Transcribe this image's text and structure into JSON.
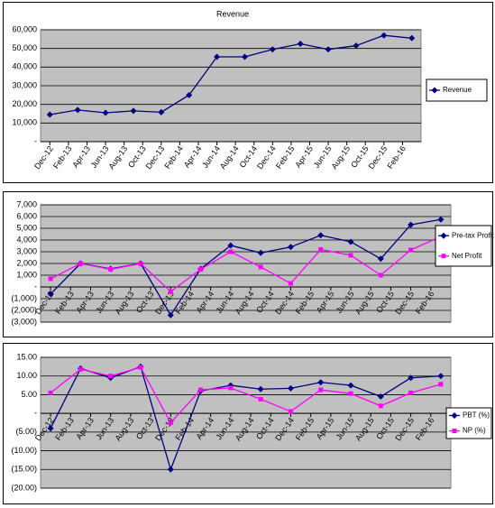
{
  "chart_data": [
    {
      "type": "line",
      "title": "Revenue",
      "x": [
        "2012-12",
        "2013-03",
        "2013-06",
        "2013-09",
        "2013-12",
        "2014-03",
        "2014-06",
        "2014-09",
        "2014-12",
        "2015-03",
        "2015-06",
        "2015-09",
        "2015-12",
        "2016-03"
      ],
      "xlim": [
        "2012-11",
        "2016-04"
      ],
      "xticks": [
        {
          "value": "2012-12",
          "label": "Dec-12"
        },
        {
          "value": "2013-02",
          "label": "Feb-13"
        },
        {
          "value": "2013-04",
          "label": "Apr-13"
        },
        {
          "value": "2013-06",
          "label": "Jun-13"
        },
        {
          "value": "2013-08",
          "label": "Aug-13"
        },
        {
          "value": "2013-10",
          "label": "Oct-13"
        },
        {
          "value": "2013-12",
          "label": "Dec-13"
        },
        {
          "value": "2014-02",
          "label": "Feb-14"
        },
        {
          "value": "2014-04",
          "label": "Apr-14"
        },
        {
          "value": "2014-06",
          "label": "Jun-14"
        },
        {
          "value": "2014-08",
          "label": "Aug-14"
        },
        {
          "value": "2014-10",
          "label": "Oct-14"
        },
        {
          "value": "2014-12",
          "label": "Dec-14"
        },
        {
          "value": "2015-02",
          "label": "Feb-15"
        },
        {
          "value": "2015-04",
          "label": "Apr-15"
        },
        {
          "value": "2015-06",
          "label": "Jun-15"
        },
        {
          "value": "2015-08",
          "label": "Aug-15"
        },
        {
          "value": "2015-10",
          "label": "Oct-15"
        },
        {
          "value": "2015-12",
          "label": "Dec-15"
        },
        {
          "value": "2016-02",
          "label": "Feb-16"
        }
      ],
      "ylim": [
        0,
        60000
      ],
      "yticks": [
        {
          "value": 0,
          "label": "-"
        },
        {
          "value": 10000,
          "label": "10,000"
        },
        {
          "value": 20000,
          "label": "20,000"
        },
        {
          "value": 30000,
          "label": "30,000"
        },
        {
          "value": 40000,
          "label": "40,000"
        },
        {
          "value": 50000,
          "label": "50,000"
        },
        {
          "value": 60000,
          "label": "60,000"
        }
      ],
      "grid": true,
      "legend": "right",
      "series": [
        {
          "name": "Revenue",
          "color": "#000080",
          "marker": "diamond",
          "values": [
            14500,
            17000,
            15500,
            16500,
            15800,
            25000,
            45500,
            45500,
            49500,
            52500,
            49500,
            51500,
            57000,
            55500
          ]
        }
      ]
    },
    {
      "type": "line",
      "x": [
        "2012-12",
        "2013-03",
        "2013-06",
        "2013-09",
        "2013-12",
        "2014-03",
        "2014-06",
        "2014-09",
        "2014-12",
        "2015-03",
        "2015-06",
        "2015-09",
        "2015-12",
        "2016-03"
      ],
      "xlim": [
        "2012-11",
        "2016-04"
      ],
      "xticks": [
        {
          "value": "2012-12",
          "label": "Dec-12"
        },
        {
          "value": "2013-02",
          "label": "Feb-13"
        },
        {
          "value": "2013-04",
          "label": "Apr-13"
        },
        {
          "value": "2013-06",
          "label": "Jun-13"
        },
        {
          "value": "2013-08",
          "label": "Aug-13"
        },
        {
          "value": "2013-10",
          "label": "Oct-13"
        },
        {
          "value": "2013-12",
          "label": "Dec-13"
        },
        {
          "value": "2014-02",
          "label": "Feb-14"
        },
        {
          "value": "2014-04",
          "label": "Apr-14"
        },
        {
          "value": "2014-06",
          "label": "Jun-14"
        },
        {
          "value": "2014-08",
          "label": "Aug-14"
        },
        {
          "value": "2014-10",
          "label": "Oct-14"
        },
        {
          "value": "2014-12",
          "label": "Dec-14"
        },
        {
          "value": "2015-02",
          "label": "Feb-15"
        },
        {
          "value": "2015-04",
          "label": "Apr-15"
        },
        {
          "value": "2015-06",
          "label": "Jun-15"
        },
        {
          "value": "2015-08",
          "label": "Aug-15"
        },
        {
          "value": "2015-10",
          "label": "Oct-15"
        },
        {
          "value": "2015-12",
          "label": "Dec-15"
        },
        {
          "value": "2016-02",
          "label": "Feb-16"
        }
      ],
      "ylim": [
        -3000,
        7000
      ],
      "yticks": [
        {
          "value": -3000,
          "label": "(3,000)"
        },
        {
          "value": -2000,
          "label": "(2,000)"
        },
        {
          "value": -1000,
          "label": "(1,000)"
        },
        {
          "value": 0,
          "label": "-"
        },
        {
          "value": 1000,
          "label": "1,000"
        },
        {
          "value": 2000,
          "label": "2,000"
        },
        {
          "value": 3000,
          "label": "3,000"
        },
        {
          "value": 4000,
          "label": "4,000"
        },
        {
          "value": 5000,
          "label": "5,000"
        },
        {
          "value": 6000,
          "label": "6,000"
        },
        {
          "value": 7000,
          "label": "7,000"
        }
      ],
      "grid": true,
      "legend": "right",
      "series": [
        {
          "name": "Pre-tax Profit",
          "color": "#000080",
          "marker": "diamond",
          "values": [
            -600,
            2000,
            1540,
            2000,
            -2400,
            1540,
            3540,
            2900,
            3400,
            4400,
            3850,
            2400,
            5300,
            5750
          ]
        },
        {
          "name": "Net Profit",
          "color": "#ff00ff",
          "marker": "square",
          "values": [
            700,
            2000,
            1500,
            2000,
            -400,
            1500,
            3000,
            1700,
            300,
            3200,
            2700,
            1000,
            3150,
            4300
          ]
        }
      ]
    },
    {
      "type": "line",
      "x": [
        "2012-12",
        "2013-03",
        "2013-06",
        "2013-09",
        "2013-12",
        "2014-03",
        "2014-06",
        "2014-09",
        "2014-12",
        "2015-03",
        "2015-06",
        "2015-09",
        "2015-12",
        "2016-03"
      ],
      "xlim": [
        "2012-11",
        "2016-04"
      ],
      "xticks": [
        {
          "value": "2012-12",
          "label": "Dec-12"
        },
        {
          "value": "2013-02",
          "label": "Feb-13"
        },
        {
          "value": "2013-04",
          "label": "Apr-13"
        },
        {
          "value": "2013-06",
          "label": "Jun-13"
        },
        {
          "value": "2013-08",
          "label": "Aug-13"
        },
        {
          "value": "2013-10",
          "label": "Oct-13"
        },
        {
          "value": "2013-12",
          "label": "Dec-13"
        },
        {
          "value": "2014-02",
          "label": "Feb-14"
        },
        {
          "value": "2014-04",
          "label": "Apr-14"
        },
        {
          "value": "2014-06",
          "label": "Jun-14"
        },
        {
          "value": "2014-08",
          "label": "Aug-14"
        },
        {
          "value": "2014-10",
          "label": "Oct-14"
        },
        {
          "value": "2014-12",
          "label": "Dec-14"
        },
        {
          "value": "2015-02",
          "label": "Feb-15"
        },
        {
          "value": "2015-04",
          "label": "Apr-15"
        },
        {
          "value": "2015-06",
          "label": "Jun-15"
        },
        {
          "value": "2015-08",
          "label": "Aug-15"
        },
        {
          "value": "2015-10",
          "label": "Oct-15"
        },
        {
          "value": "2015-12",
          "label": "Dec-15"
        },
        {
          "value": "2016-02",
          "label": "Feb-16"
        }
      ],
      "ylim": [
        -20,
        15
      ],
      "yticks": [
        {
          "value": -20,
          "label": "(20.00)"
        },
        {
          "value": -15,
          "label": "(15.00)"
        },
        {
          "value": -10,
          "label": "(10.00)"
        },
        {
          "value": -5,
          "label": "(5.00)"
        },
        {
          "value": 0,
          "label": "-"
        },
        {
          "value": 5,
          "label": "5.00"
        },
        {
          "value": 10,
          "label": "10.00"
        },
        {
          "value": 15,
          "label": "15.00"
        }
      ],
      "grid": true,
      "legend": "right",
      "series": [
        {
          "name": "PBT (%)",
          "color": "#000080",
          "marker": "diamond",
          "values": [
            -4,
            12,
            9.5,
            12.5,
            -15,
            6,
            7.5,
            6.5,
            6.7,
            8.3,
            7.5,
            4.5,
            9.5,
            10
          ]
        },
        {
          "name": "NP (%)",
          "color": "#ff00ff",
          "marker": "square",
          "values": [
            5.5,
            11.8,
            10,
            12.3,
            -2.5,
            6.3,
            6.8,
            3.8,
            0.5,
            6.3,
            5.3,
            2,
            5.5,
            7.8
          ]
        }
      ]
    }
  ]
}
